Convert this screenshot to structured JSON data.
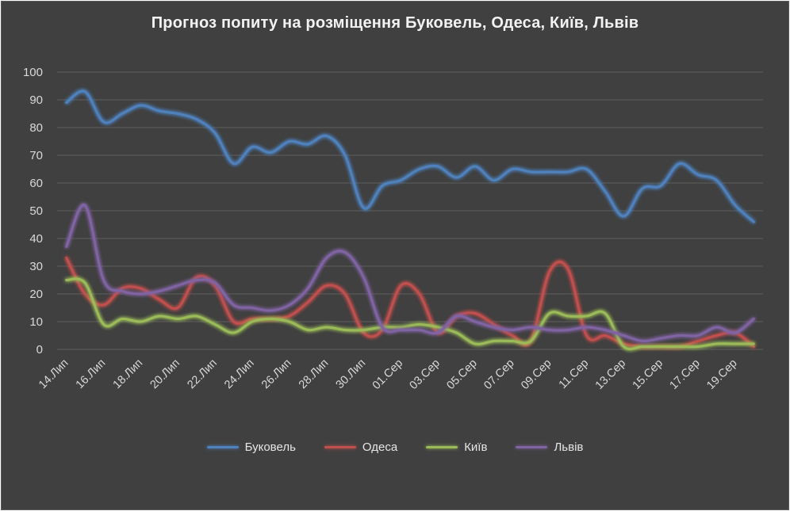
{
  "chart_data": {
    "type": "line",
    "title": "Прогноз попиту на розміщення  Буковель, Одеса, Київ, Львів",
    "xlabel": "",
    "ylabel": "",
    "ylim": [
      0,
      100
    ],
    "yticks": [
      0,
      10,
      20,
      30,
      40,
      50,
      60,
      70,
      80,
      90,
      100
    ],
    "grid": true,
    "legend_position": "bottom",
    "categories": [
      "14.Лип",
      "15.Лип",
      "16.Лип",
      "17.Лип",
      "18.Лип",
      "19.Лип",
      "20.Лип",
      "21.Лип",
      "22.Лип",
      "23.Лип",
      "24.Лип",
      "25.Лип",
      "26.Лип",
      "27.Лип",
      "28.Лип",
      "29.Лип",
      "30.Лип",
      "31.Лип",
      "01.Сер",
      "02.Сер",
      "03.Сер",
      "04.Сер",
      "05.Сер",
      "06.Сер",
      "07.Сер",
      "08.Сер",
      "09.Сер",
      "10.Сер",
      "11.Сер",
      "12.Сер",
      "13.Сер",
      "14.Сер",
      "15.Сер",
      "16.Сер",
      "17.Сер",
      "18.Сер",
      "19.Сер",
      "20.Сер"
    ],
    "tick_labels_shown": [
      "14.Лип",
      "16.Лип",
      "18.Лип",
      "20.Лип",
      "22.Лип",
      "24.Лип",
      "26.Лип",
      "28.Лип",
      "30.Лип",
      "01.Сер",
      "03.Сер",
      "05.Сер",
      "07.Сер",
      "09.Сер",
      "11.Сер",
      "13.Сер",
      "15.Сер",
      "17.Сер",
      "19.Сер"
    ],
    "series": [
      {
        "name": "Буковель",
        "color": "#4f81bd",
        "values": [
          89,
          93,
          82,
          85,
          88,
          86,
          85,
          83,
          78,
          67,
          73,
          71,
          75,
          74,
          77,
          70,
          51,
          59,
          61,
          65,
          66,
          62,
          66,
          61,
          65,
          64,
          64,
          64,
          65,
          57,
          48,
          58,
          59,
          67,
          63,
          61,
          52,
          46
        ]
      },
      {
        "name": "Одеса",
        "color": "#c0504d",
        "values": [
          33,
          20,
          16,
          22,
          22,
          18,
          15,
          26,
          23,
          10,
          11,
          11,
          12,
          17,
          23,
          20,
          6,
          7,
          23,
          20,
          6,
          12,
          13,
          9,
          5,
          3,
          28,
          29,
          5,
          5,
          2,
          1,
          1,
          1,
          3,
          5,
          6,
          1
        ]
      },
      {
        "name": "Київ",
        "color": "#9bbb59",
        "values": [
          25,
          24,
          9,
          11,
          10,
          12,
          11,
          12,
          9,
          6,
          10,
          11,
          10,
          7,
          8,
          7,
          7,
          8,
          8,
          9,
          8,
          6,
          2,
          3,
          3,
          3,
          13,
          12,
          12,
          13,
          1,
          1,
          1,
          1,
          1,
          2,
          2,
          2
        ]
      },
      {
        "name": "Львів",
        "color": "#8064a2",
        "values": [
          37,
          52,
          25,
          21,
          20,
          21,
          23,
          25,
          24,
          16,
          15,
          14,
          16,
          22,
          33,
          35,
          26,
          8,
          7,
          7,
          6,
          12,
          10,
          8,
          7,
          8,
          7,
          7,
          8,
          7,
          5,
          3,
          4,
          5,
          5,
          8,
          6,
          11
        ]
      }
    ]
  }
}
